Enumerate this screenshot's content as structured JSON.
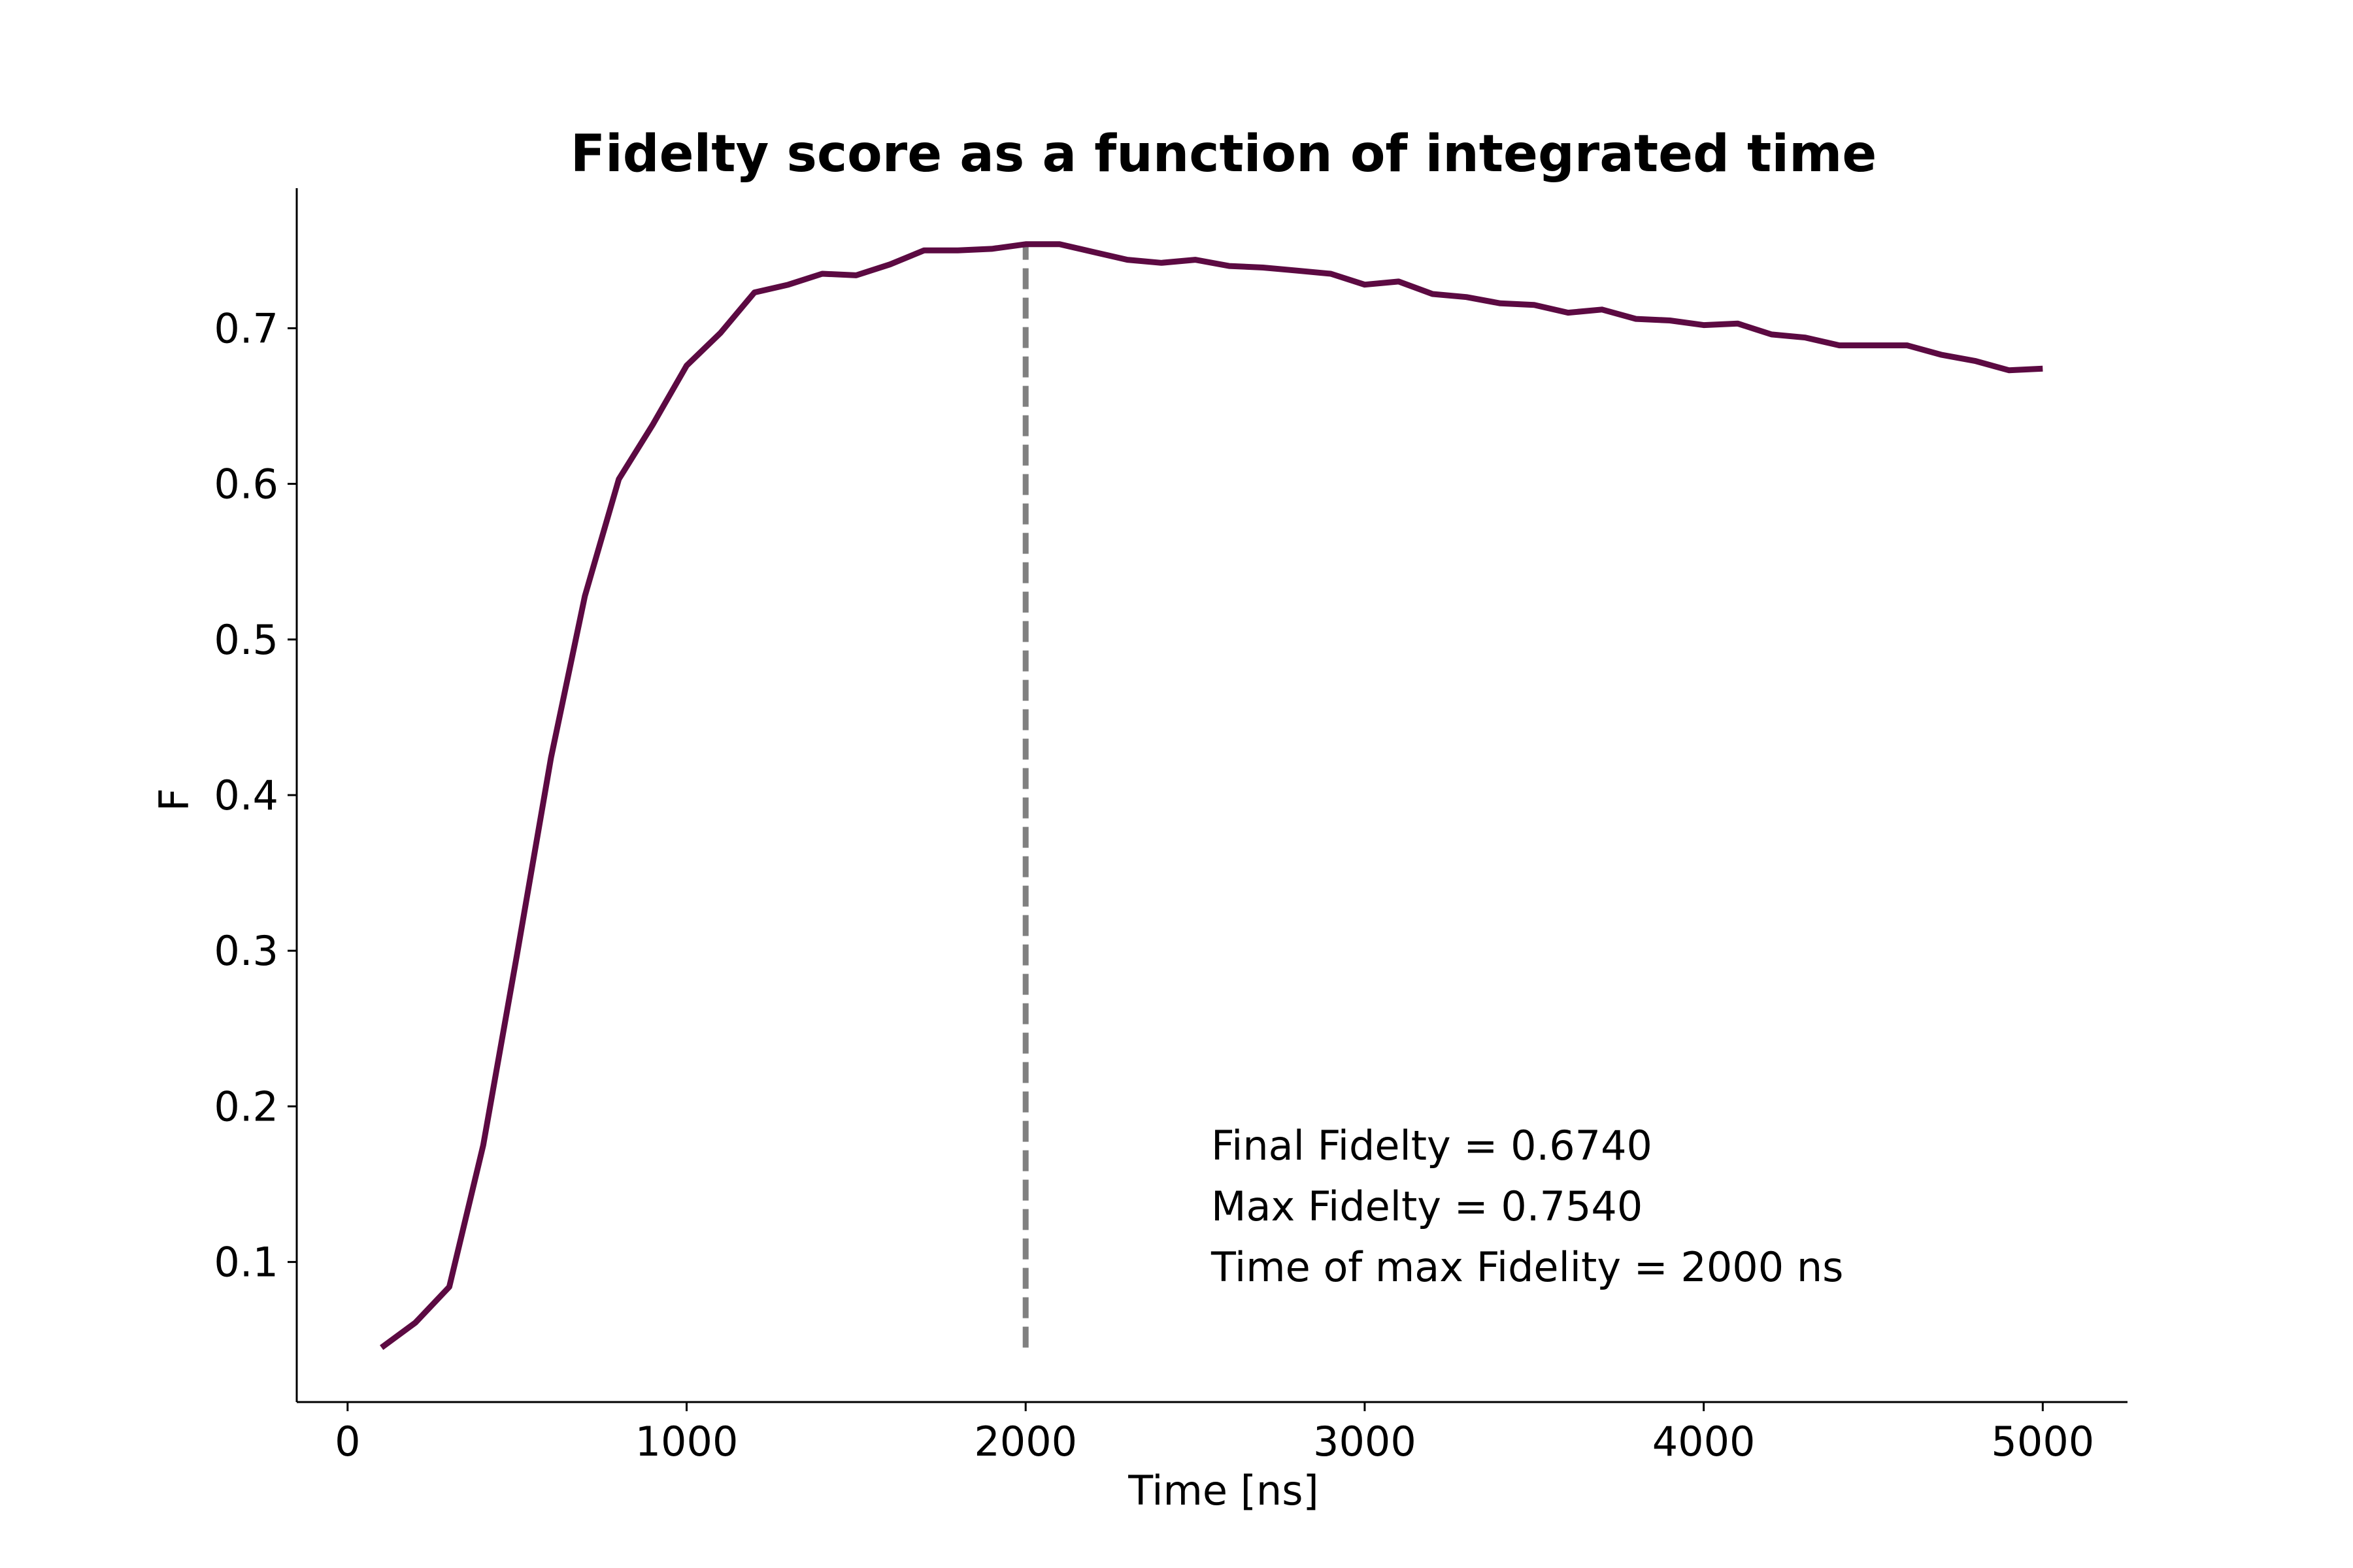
{
  "chart_data": {
    "type": "line",
    "title": "Fidelty score as a function of integrated time",
    "xlabel": "Time  [ns]",
    "ylabel": "F",
    "xlim": [
      -150,
      5250
    ],
    "ylim": [
      0.01,
      0.79
    ],
    "xticks": [
      0,
      1000,
      2000,
      3000,
      4000,
      5000
    ],
    "yticks": [
      0.1,
      0.2,
      0.3,
      0.4,
      0.5,
      0.6,
      0.7
    ],
    "grid": false,
    "legend": "none",
    "line_color": "#5c0a42",
    "marker_line_color": "#808080",
    "series": [
      {
        "x": [
          100,
          200,
          300,
          400,
          500,
          600,
          700,
          800,
          900,
          1000,
          1100,
          1200,
          1300,
          1400,
          1500,
          1600,
          1700,
          1800,
          1900,
          2000,
          2100,
          2200,
          2300,
          2400,
          2500,
          2600,
          2700,
          2800,
          2900,
          3000,
          3100,
          3200,
          3300,
          3400,
          3500,
          3600,
          3700,
          3800,
          3900,
          4000,
          4100,
          4200,
          4300,
          4400,
          4500,
          4600,
          4700,
          4800,
          4900,
          5000
        ],
        "values": [
          0.045,
          0.061,
          0.084,
          0.175,
          0.298,
          0.424,
          0.528,
          0.603,
          0.638,
          0.676,
          0.697,
          0.723,
          0.728,
          0.735,
          0.734,
          0.741,
          0.75,
          0.75,
          0.751,
          0.754,
          0.754,
          0.749,
          0.744,
          0.742,
          0.744,
          0.74,
          0.739,
          0.737,
          0.735,
          0.728,
          0.73,
          0.722,
          0.72,
          0.716,
          0.715,
          0.71,
          0.712,
          0.706,
          0.705,
          0.702,
          0.703,
          0.696,
          0.694,
          0.689,
          0.689,
          0.689,
          0.683,
          0.679,
          0.673,
          0.674
        ]
      }
    ],
    "vline": {
      "x": 2000,
      "y_range": [
        0.045,
        0.754
      ]
    },
    "annotations": [
      "Final Fidelty = 0.6740",
      "Max Fidelty = 0.7540",
      "Time of max Fidelity = 2000 ns"
    ]
  }
}
